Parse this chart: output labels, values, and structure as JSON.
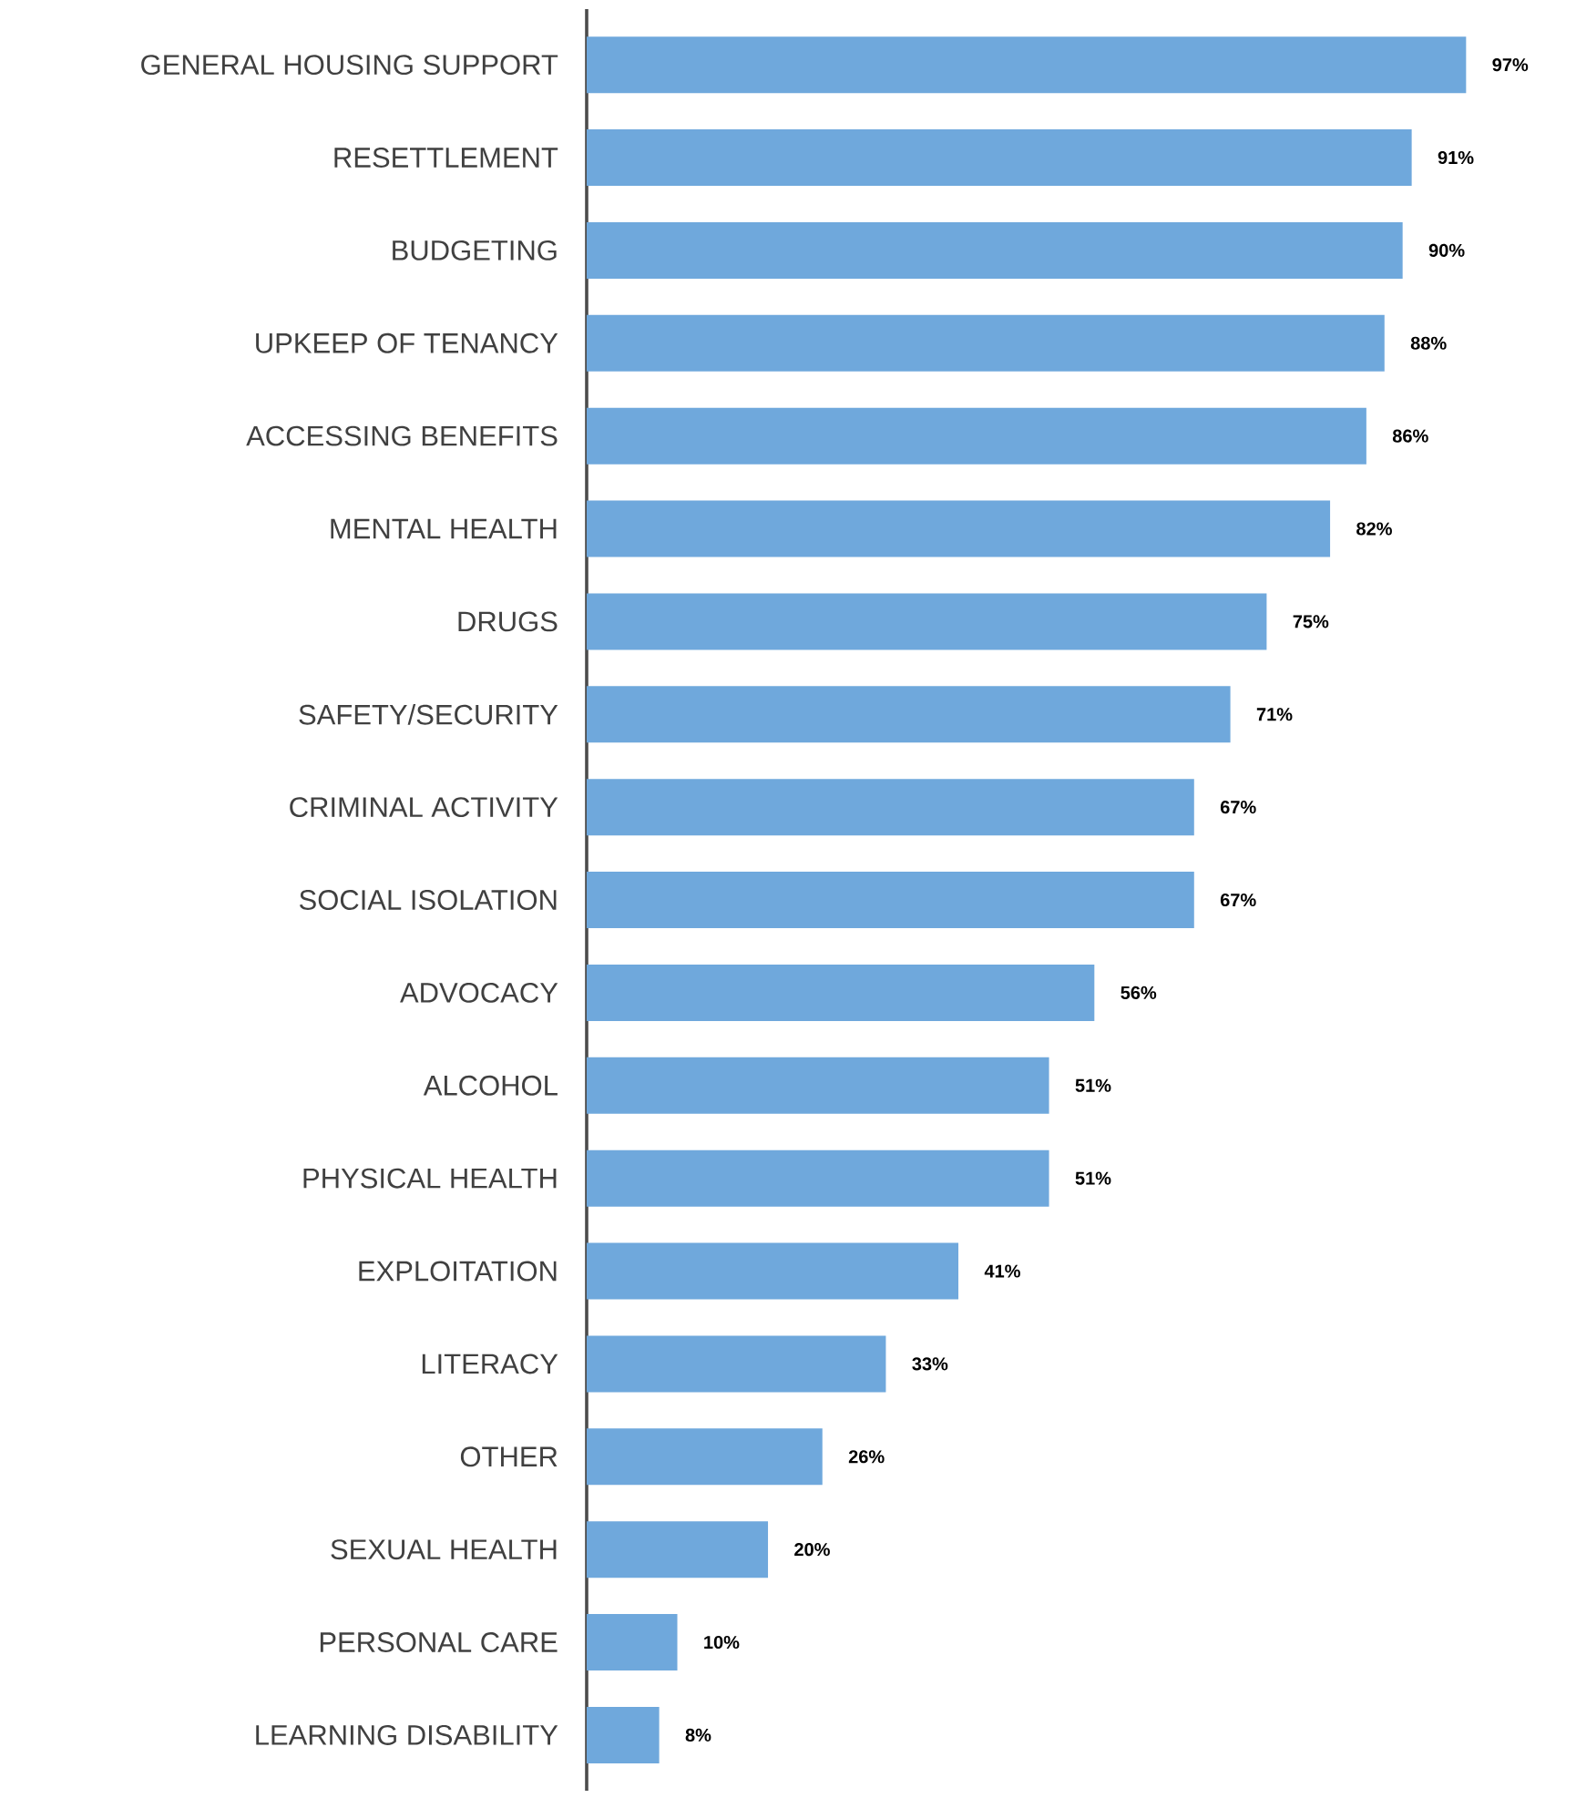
{
  "chart_data": {
    "type": "bar",
    "orientation": "horizontal",
    "color": "#6fa8dc",
    "categories": [
      "GENERAL HOUSING SUPPORT",
      "RESETTLEMENT",
      "BUDGETING",
      "UPKEEP OF TENANCY",
      "ACCESSING BENEFITS",
      "MENTAL HEALTH",
      "DRUGS",
      "SAFETY/SECURITY",
      "CRIMINAL ACTIVITY",
      "SOCIAL ISOLATION",
      "ADVOCACY",
      "ALCOHOL",
      "PHYSICAL HEALTH",
      "EXPLOITATION",
      "LITERACY",
      "OTHER",
      "SEXUAL HEALTH",
      "PERSONAL CARE",
      "LEARNING DISABILITY"
    ],
    "values": [
      97,
      91,
      90,
      88,
      86,
      82,
      75,
      71,
      67,
      67,
      56,
      51,
      51,
      41,
      33,
      26,
      20,
      10,
      8
    ],
    "value_labels": [
      "97%",
      "91%",
      "90%",
      "88%",
      "86%",
      "82%",
      "75%",
      "71%",
      "67%",
      "67%",
      "56%",
      "51%",
      "51%",
      "41%",
      "33%",
      "26%",
      "20%",
      "10%",
      "8%"
    ]
  }
}
